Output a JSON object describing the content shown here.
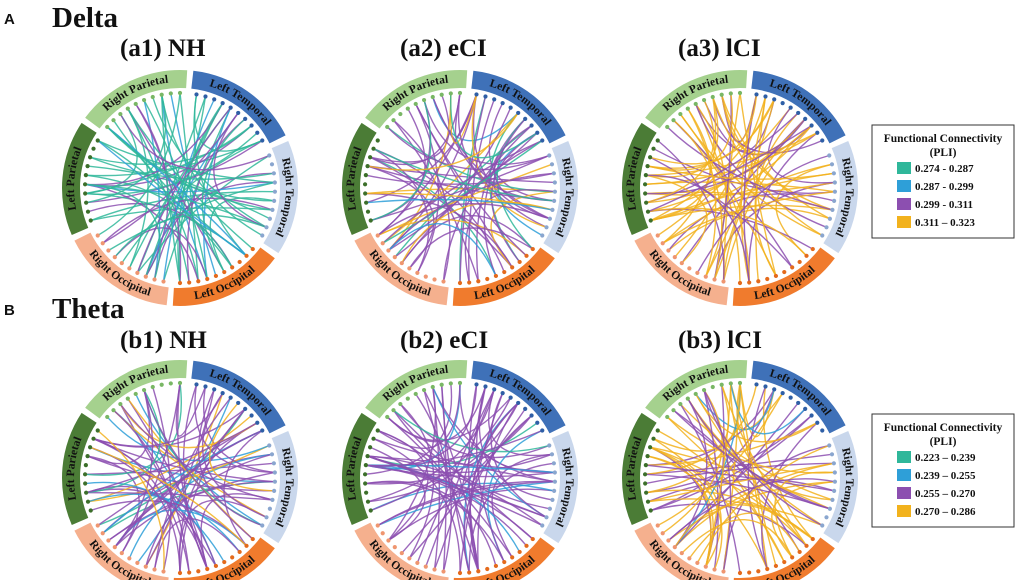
{
  "colors": {
    "lt": "#3f71b8",
    "rt": "#c9d7ec",
    "lo": "#f07b2d",
    "ro": "#f5b08e",
    "lp": "#4b7c36",
    "rp": "#a5d18e",
    "c1": "#2fb79a",
    "c2": "#2e9fd8",
    "c3": "#8c4fb0",
    "c4": "#f2b21d"
  },
  "regions": {
    "left_temporal": "Left Temporal",
    "right_temporal": "Right Temporal",
    "left_occipital": "Left Occipital",
    "right_occipital": "Right Occipital",
    "left_parietal": "Left Parietal",
    "right_parietal": "Right Parietal"
  },
  "bands": [
    {
      "letter": "A",
      "title": "Delta",
      "panels": [
        {
          "title": "(a1) NH",
          "mix": [
            0.55,
            0.15,
            0.3,
            0.0
          ]
        },
        {
          "title": "(a2) eCI",
          "mix": [
            0.1,
            0.1,
            0.62,
            0.18
          ]
        },
        {
          "title": "(a3) lCI",
          "mix": [
            0.0,
            0.0,
            0.25,
            0.75
          ]
        }
      ],
      "legend": {
        "title_line1": "Functional Connectivity",
        "title_line2": "(PLI)",
        "items": [
          "0.274 - 0.287",
          "0.287 - 0.299",
          "0.299 - 0.311",
          "0.311 – 0.323"
        ]
      }
    },
    {
      "letter": "B",
      "title": "Theta",
      "panels": [
        {
          "title": "(b1) NH",
          "mix": [
            0.05,
            0.2,
            0.7,
            0.05
          ]
        },
        {
          "title": "(b2) eCI",
          "mix": [
            0.05,
            0.08,
            0.82,
            0.05
          ]
        },
        {
          "title": "(b3) lCI",
          "mix": [
            0.0,
            0.02,
            0.4,
            0.58
          ]
        }
      ],
      "legend": {
        "title_line1": "Functional Connectivity",
        "title_line2": "(PLI)",
        "items": [
          "0.223 – 0.239",
          "0.239 – 0.255",
          "0.255 – 0.270",
          "0.270 – 0.286"
        ]
      }
    }
  ]
}
